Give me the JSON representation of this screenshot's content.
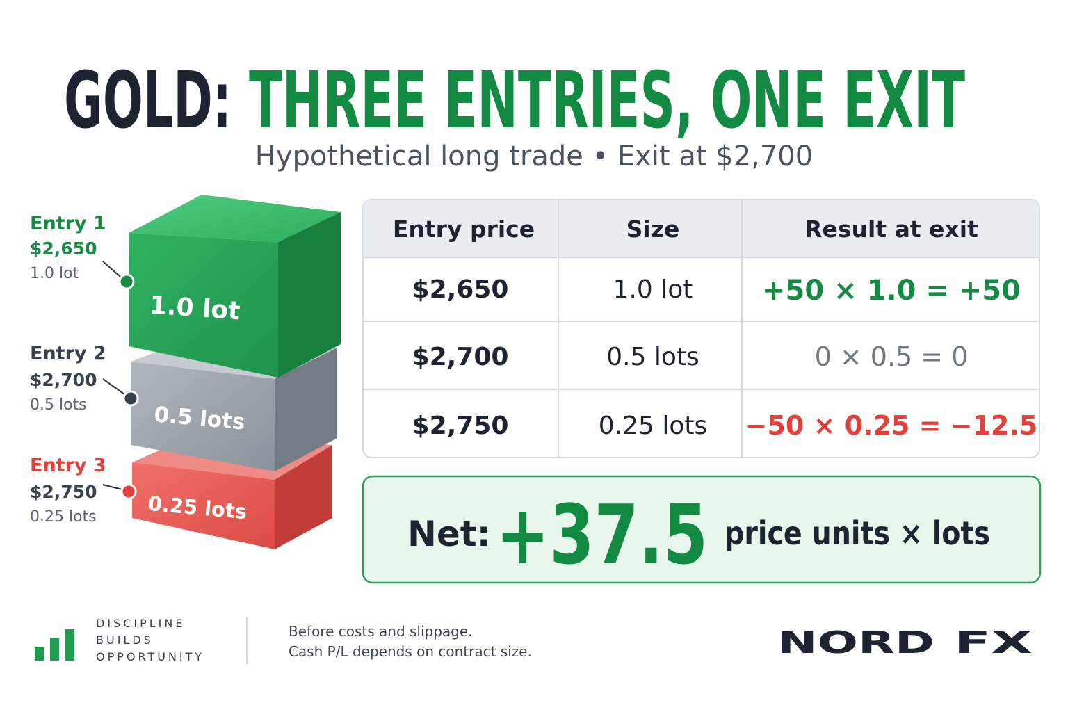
{
  "header": {
    "title_lead": "GOLD:",
    "title_main": "THREE ENTRIES, ONE EXIT",
    "subtitle": "Hypothetical long trade • Exit at $2,700"
  },
  "entries": [
    {
      "label": "Entry 1",
      "price": "$2,650",
      "size": "1.0 lot"
    },
    {
      "label": "Entry 2",
      "price": "$2,700",
      "size": "0.5 lots"
    },
    {
      "label": "Entry 3",
      "price": "$2,750",
      "size": "0.25 lots"
    }
  ],
  "table": {
    "header": [
      "Entry price",
      "Size",
      "Result at exit"
    ],
    "rows": [
      [
        "$2,650",
        "1.0 lot",
        "+50 × 1.0 = +50"
      ],
      [
        "$2,700",
        "0.5 lots",
        "0 × 0.5 = 0"
      ],
      [
        "$2,750",
        "0.25 lots",
        "−50 × 0.25 = −12.5"
      ]
    ]
  },
  "net": {
    "label": "Net:",
    "value": "+37.5",
    "unit": "price units × lots"
  },
  "footer": {
    "tagline": [
      "DISCIPLINE",
      "BUILDS",
      "OPPORTUNITY"
    ],
    "notes": [
      "Before costs and slippage.",
      "Cash P/L depends on contract size."
    ],
    "logo": [
      "NORD",
      "FX"
    ]
  }
}
